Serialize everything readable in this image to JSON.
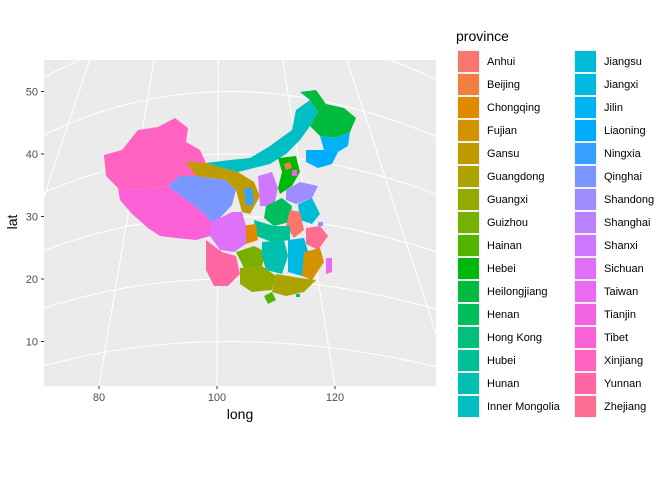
{
  "chart_data": {
    "type": "map",
    "title": "",
    "xlabel": "long",
    "ylabel": "lat",
    "xlim": [
      70,
      138
    ],
    "ylim": [
      3,
      55
    ],
    "x_ticks": [
      80,
      100,
      120
    ],
    "y_ticks": [
      10,
      20,
      30,
      40,
      50
    ],
    "grid": true,
    "legend": {
      "title": "province",
      "placement": "right",
      "columns": 2,
      "entries": [
        {
          "name": "Anhui",
          "color": "#F8766D"
        },
        {
          "name": "Beijing",
          "color": "#F17F3F"
        },
        {
          "name": "Chongqing",
          "color": "#E38900"
        },
        {
          "name": "Fujian",
          "color": "#D39200"
        },
        {
          "name": "Gansu",
          "color": "#C09B00"
        },
        {
          "name": "Guangdong",
          "color": "#ABA300"
        },
        {
          "name": "Guangxi",
          "color": "#93AA00"
        },
        {
          "name": "Guizhou",
          "color": "#77B000"
        },
        {
          "name": "Hainan",
          "color": "#53B400"
        },
        {
          "name": "Hebei",
          "color": "#00B80B"
        },
        {
          "name": "Heilongjiang",
          "color": "#00BB3D"
        },
        {
          "name": "Henan",
          "color": "#00BE5E"
        },
        {
          "name": "Hong Kong",
          "color": "#00C07B"
        },
        {
          "name": "Hubei",
          "color": "#00C096"
        },
        {
          "name": "Hunan",
          "color": "#00C0AF"
        },
        {
          "name": "Inner Mongolia",
          "color": "#00BEC3"
        },
        {
          "name": "Jiangsu",
          "color": "#00BCD6"
        },
        {
          "name": "Jiangxi",
          "color": "#00B9E3"
        },
        {
          "name": "Jilin",
          "color": "#00B3F2"
        },
        {
          "name": "Liaoning",
          "color": "#00ACFC"
        },
        {
          "name": "Ningxia",
          "color": "#35A2FF"
        },
        {
          "name": "Qinghai",
          "color": "#7997FF"
        },
        {
          "name": "Shandong",
          "color": "#9F8CFF"
        },
        {
          "name": "Shanghai",
          "color": "#BA81FF"
        },
        {
          "name": "Shanxi",
          "color": "#CF78FF"
        },
        {
          "name": "Sichuan",
          "color": "#DF70F8"
        },
        {
          "name": "Taiwan",
          "color": "#EA6AF1"
        },
        {
          "name": "Tianjin",
          "color": "#F464E2"
        },
        {
          "name": "Tibet",
          "color": "#FB61D7"
        },
        {
          "name": "Xinjiang",
          "color": "#FF62C1"
        },
        {
          "name": "Yunnan",
          "color": "#FF67A4"
        },
        {
          "name": "Zhejiang",
          "color": "#FF6C91"
        }
      ]
    }
  }
}
